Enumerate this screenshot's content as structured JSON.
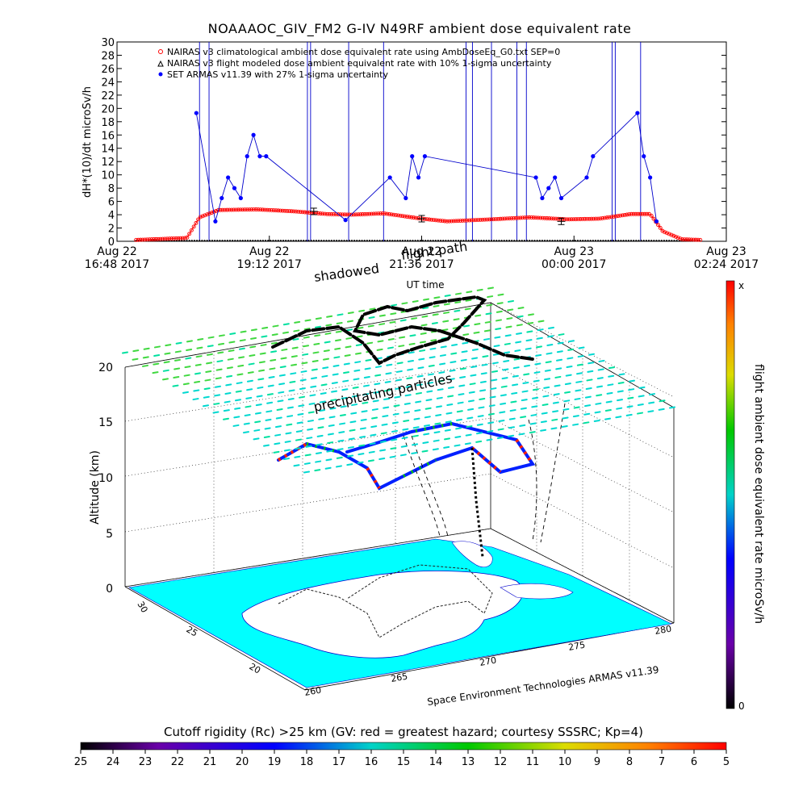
{
  "top_chart": {
    "title": "NOAAAOC_GIV_FM2 G-IV    N49RF   ambient dose equivalent rate",
    "ylabel": "dH*(10)/dt microSv/h",
    "yticks": [
      "0",
      "2",
      "4",
      "6",
      "8",
      "10",
      "12",
      "14",
      "16",
      "18",
      "20",
      "22",
      "24",
      "26",
      "28",
      "30"
    ],
    "xticks": [
      {
        "line1": "Aug 22",
        "line2": "16:48 2017"
      },
      {
        "line1": "Aug 22",
        "line2": "19:12 2017"
      },
      {
        "line1": "Aug 22",
        "line2": "21:36 2017"
      },
      {
        "line1": "Aug 23",
        "line2": "00:00 2017"
      },
      {
        "line1": "Aug 23",
        "line2": "02:24 2017"
      }
    ],
    "xlabel": "UT time",
    "legend": [
      "NAIRAS v3 climatological ambient dose equivalent rate using AmbDoseEq_G0.txt SEP=0",
      "NAIRAS v3 flight modeled dose ambient equivalent rate with 10% 1-sigma uncertainty",
      "SET ARMAS v11.39 with 27% 1-sigma uncertainty"
    ],
    "colors": {
      "nairas_clim": "#ff0000",
      "nairas_flight": "#000000",
      "armas": "#0000ff"
    }
  },
  "chart_data": {
    "type": "line",
    "title": "NOAAAOC_GIV_FM2 G-IV    N49RF   ambient dose equivalent rate",
    "xlabel": "UT time",
    "ylabel": "dH*(10)/dt microSv/h",
    "ylim": [
      0,
      30
    ],
    "xlim_hours": [
      16.8,
      26.4
    ],
    "legend_position": "top-left",
    "series": [
      {
        "name": "NAIRAS v3 climatological ambient dose equivalent rate using AmbDoseEq_G0.txt SEP=0",
        "x": [
          17.1,
          17.9,
          18.1,
          18.4,
          19.0,
          19.6,
          20.1,
          20.5,
          21.0,
          21.6,
          22.0,
          22.7,
          23.3,
          23.9,
          24.4,
          24.9,
          25.2,
          25.4,
          25.7,
          26.0
        ],
        "y": [
          0.2,
          0.5,
          3.6,
          4.7,
          4.8,
          4.5,
          4.1,
          4.0,
          4.2,
          3.4,
          3.0,
          3.3,
          3.6,
          3.3,
          3.4,
          4.1,
          4.1,
          1.5,
          0.3,
          0.2
        ]
      },
      {
        "name": "NAIRAS v3 flight modeled dose ambient equivalent rate with 10% 1-sigma uncertainty",
        "x": [
          19.9,
          21.6,
          23.8
        ],
        "y": [
          4.5,
          3.4,
          3.0
        ]
      },
      {
        "name": "SET ARMAS v11.39 with 27% 1-sigma uncertainty",
        "x": [
          18.05,
          18.35,
          18.45,
          18.55,
          18.65,
          18.75,
          18.85,
          18.95,
          19.05,
          19.15,
          20.4,
          21.1,
          21.35,
          21.45,
          21.55,
          21.65,
          23.4,
          23.5,
          23.6,
          23.7,
          23.8,
          24.2,
          24.3,
          25.0,
          25.1,
          25.2,
          25.3
        ],
        "y": [
          19.3,
          3.0,
          6.5,
          9.6,
          8.0,
          6.5,
          12.8,
          16.0,
          12.8,
          12.8,
          3.2,
          9.6,
          6.5,
          12.8,
          9.6,
          12.8,
          9.6,
          6.5,
          8.0,
          9.6,
          6.5,
          9.6,
          12.8,
          19.3,
          12.8,
          9.6,
          3.0
        ]
      }
    ]
  },
  "scene": {
    "label_shadowed": "shadowed",
    "label_flight_path": "flight path",
    "label_precip": "precipitating particles",
    "z_label": "Altitude (km)",
    "z_ticks": [
      "0",
      "5",
      "10",
      "15",
      "20"
    ],
    "lat_ticks": [
      "30",
      "25",
      "20"
    ],
    "lon_ticks_front": [
      "260",
      "265",
      "270"
    ],
    "lon_ticks_right": [
      "275",
      "280"
    ],
    "credit": "Space Environment Technologies ARMAS v11.39"
  },
  "vertical_colorbar": {
    "label": "flight ambient dose equivalent rate microSv/h",
    "top_label": "x",
    "bottom_label": "0"
  },
  "rigidity_bar": {
    "title": "Cutoff rigidity (Rc) >25 km (GV: red = greatest hazard; courtesy SSSRC; Kp=4)",
    "ticks": [
      "25",
      "24",
      "23",
      "22",
      "21",
      "20",
      "19",
      "18",
      "17",
      "16",
      "15",
      "14",
      "13",
      "12",
      "11",
      "10",
      "9",
      "8",
      "7",
      "6",
      "5"
    ]
  }
}
